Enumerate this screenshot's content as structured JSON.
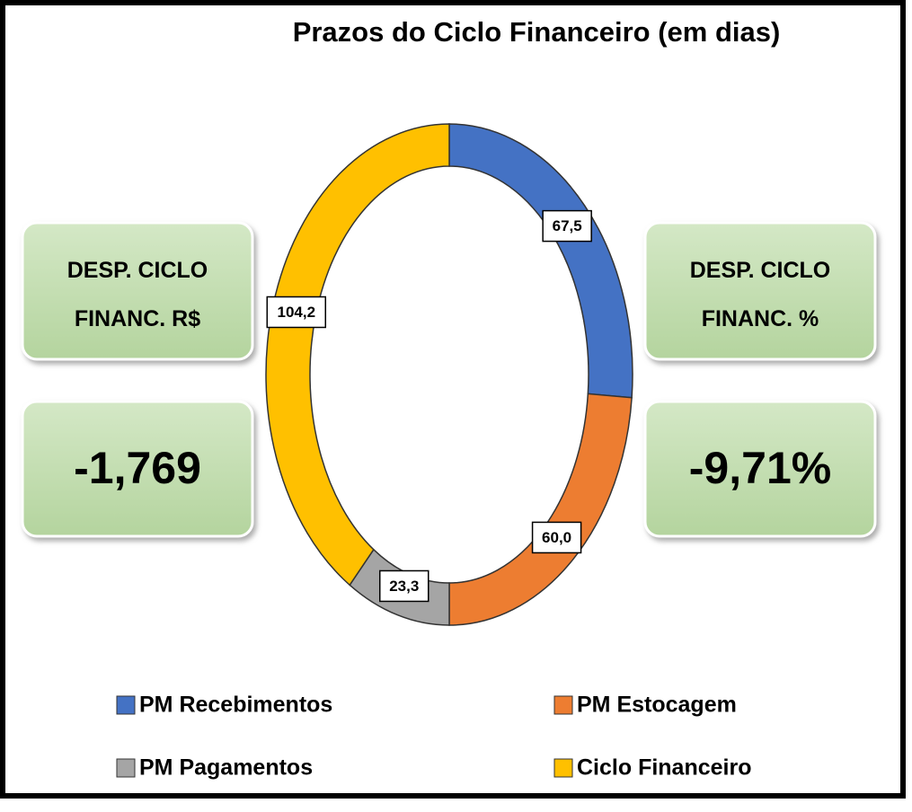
{
  "chart_data": {
    "type": "donut",
    "title": "Prazos do Ciclo Financeiro (em dias)",
    "categories": [
      "PM Recebimentos",
      "PM Estocagem",
      "PM Pagamentos",
      "Ciclo Financeiro"
    ],
    "values": [
      67.5,
      60.0,
      23.3,
      104.2
    ],
    "value_labels": [
      "67,5",
      "60,0",
      "23,3",
      "104,2"
    ],
    "colors": [
      "#4472c4",
      "#ed7d31",
      "#a5a5a5",
      "#ffc000"
    ],
    "legend": "bottom"
  },
  "cards": [
    {
      "title": "DESP. CICLO FINANC. R$",
      "value": "-1,769"
    },
    {
      "title": "DESP. CICLO FINANC. %",
      "value": "-9,71%"
    }
  ]
}
